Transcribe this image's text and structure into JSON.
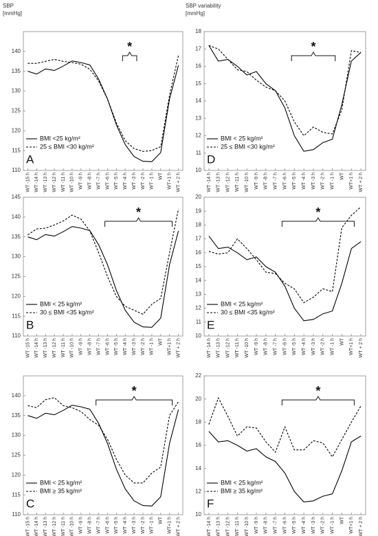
{
  "chart_data": [
    {
      "type": "line",
      "panel": "A",
      "y_label": "SBP [mmHg]",
      "annotation": "*",
      "categories": [
        "WT -15 h",
        "WT -14 h",
        "WT -13 h",
        "WT -12 h",
        "WT -11 h",
        "WT -10 h",
        "WT -9 h",
        "WT -8 h",
        "WT -7 h",
        "WT -6 h",
        "WT -5 h",
        "WT -4 h",
        "WT -3 h",
        "WT -2 h",
        "WT -1 h",
        "WT",
        "WT+1 h",
        "WT + 2 h"
      ],
      "ylim": [
        110,
        145
      ],
      "yticks": [
        110,
        115,
        120,
        125,
        130,
        135,
        140
      ],
      "series": [
        {
          "name": "BMI <25 kg/m²",
          "color": "#000000",
          "line_style": "solid",
          "values": [
            135,
            134.3,
            135.6,
            135.2,
            136.3,
            137.6,
            137.2,
            136.6,
            133,
            128,
            121.5,
            116.5,
            113.5,
            112.3,
            112.2,
            114.5,
            128,
            136.5
          ]
        },
        {
          "name": "25 ≤ BMI <30 kg/m²",
          "color": "#000000",
          "line_style": "dashed",
          "values": [
            137,
            137,
            137.5,
            138,
            137.5,
            137.2,
            136.8,
            135.5,
            132.5,
            128,
            122,
            117.5,
            115.5,
            114.8,
            115,
            116,
            129,
            139
          ]
        }
      ]
    },
    {
      "type": "line",
      "panel": "B",
      "annotation": "*",
      "categories": [
        "WT -15 h",
        "WT -14 h",
        "WT -13 h",
        "WT -12 h",
        "WT -11 h",
        "WT -10 h",
        "WT -9 h",
        "WT -8 h",
        "WT -7 h",
        "WT -6 h",
        "WT -5 h",
        "WT -4 h",
        "WT -3 h",
        "WT -2 h",
        "WT -1 h",
        "WT",
        "WT+1 h",
        "WT + 2 h"
      ],
      "ylim": [
        110,
        145
      ],
      "yticks": [
        110,
        115,
        120,
        125,
        130,
        135,
        140,
        145
      ],
      "series": [
        {
          "name": "BMI < 25 kg/m²",
          "color": "#000000",
          "line_style": "solid",
          "values": [
            135,
            134.3,
            135.6,
            135.2,
            136.3,
            137.6,
            137.2,
            136.6,
            133,
            128,
            121.5,
            116.5,
            113.5,
            112.3,
            112.2,
            114.5,
            128,
            136.5
          ]
        },
        {
          "name": "30 ≤ BMI <35 kg/m²",
          "color": "#000000",
          "line_style": "dashed",
          "values": [
            135.5,
            137,
            137.2,
            138,
            139,
            140.5,
            139.5,
            136.5,
            131,
            125,
            120,
            117.5,
            116.5,
            115.5,
            118,
            119.5,
            131,
            142
          ]
        }
      ]
    },
    {
      "type": "line",
      "panel": "C",
      "annotation": "*",
      "categories": [
        "WT -15 h",
        "WT -14 h",
        "WT -13 h",
        "WT -12 h",
        "WT -11 h",
        "WT -10 h",
        "WT -9 h",
        "WT -8 h",
        "WT -7 h",
        "WT -6 h",
        "WT -5 h",
        "WT -4 h",
        "WT -3 h",
        "WT -2 h",
        "WT -1 h",
        "WT",
        "WT+1 h",
        "WT + 2 h"
      ],
      "ylim": [
        110,
        145
      ],
      "yticks": [
        110,
        115,
        120,
        125,
        130,
        135,
        140
      ],
      "series": [
        {
          "name": "BMI < 25 kg/m²",
          "color": "#000000",
          "line_style": "solid",
          "values": [
            135,
            134.3,
            135.6,
            135.2,
            136.3,
            137.6,
            137.2,
            136.6,
            133,
            128,
            121.5,
            116.5,
            113.5,
            112.3,
            112.2,
            114.5,
            128,
            136.5
          ]
        },
        {
          "name": "BMI ≥ 35 kg/m²",
          "color": "#000000",
          "line_style": "dashed",
          "values": [
            137.5,
            137,
            139,
            139.5,
            137.5,
            137,
            136,
            134,
            132.5,
            129,
            124,
            120,
            118,
            118,
            120.5,
            122,
            135,
            138.5
          ]
        }
      ]
    },
    {
      "type": "line",
      "panel": "D",
      "y_label": "SBP variability [mmHg]",
      "annotation": "*",
      "categories": [
        "WT -14 h",
        "WT -13 h",
        "WT -12 h",
        "WT -11 h",
        "WT -10 h",
        "WT -9 h",
        "WT -8 h",
        "WT -7 h",
        "WT -6 h",
        "WT -5 h",
        "WT -4 h",
        "WT -3 h",
        "WT -2 h",
        "WT -1 h",
        "WT",
        "WT+1 h",
        "WT + 2 h"
      ],
      "ylim": [
        10,
        18
      ],
      "yticks": [
        10,
        11,
        12,
        13,
        14,
        15,
        16,
        17,
        18
      ],
      "series": [
        {
          "name": "BMI < 25 kg/m²",
          "color": "#000000",
          "line_style": "solid",
          "values": [
            17.2,
            16.3,
            16.4,
            16,
            15.5,
            15.7,
            15,
            14.6,
            13.6,
            12,
            11.1,
            11.2,
            11.6,
            11.8,
            13.8,
            16.3,
            16.8
          ]
        },
        {
          "name": "25 ≤ BMI <30 kg/m²",
          "color": "#000000",
          "line_style": "dashed",
          "values": [
            17.2,
            17,
            16.4,
            15.8,
            15.7,
            15.2,
            14.8,
            14.6,
            14,
            12.8,
            12,
            12.5,
            12.2,
            12.1,
            13.5,
            16.9,
            16.8
          ]
        }
      ]
    },
    {
      "type": "line",
      "panel": "E",
      "annotation": "*",
      "categories": [
        "WT -14 h",
        "WT -13 h",
        "WT -12 h",
        "WT -11 h",
        "WT -10 h",
        "WT -9 h",
        "WT -8 h",
        "WT -7 h",
        "WT -6 h",
        "WT -5 h",
        "WT -4 h",
        "WT -3 h",
        "WT -2 h",
        "WT -1 h",
        "WT",
        "WT+1 h",
        "WT + 2 h"
      ],
      "ylim": [
        10,
        20
      ],
      "yticks": [
        10,
        11,
        12,
        13,
        14,
        15,
        16,
        17,
        18,
        19,
        20
      ],
      "series": [
        {
          "name": "BMI < 25 kg/m²",
          "color": "#000000",
          "line_style": "solid",
          "values": [
            17.2,
            16.3,
            16.4,
            16,
            15.5,
            15.7,
            15,
            14.6,
            13.6,
            12,
            11.1,
            11.2,
            11.6,
            11.8,
            13.8,
            16.3,
            16.8
          ]
        },
        {
          "name": "30 ≤ BMI <35 kg/m²",
          "color": "#000000",
          "line_style": "dashed",
          "values": [
            16.1,
            15.9,
            16,
            17,
            16.3,
            15.5,
            14.6,
            14.5,
            13.8,
            13.4,
            12.4,
            12.8,
            13.4,
            13.2,
            17.8,
            18.7,
            19.3
          ]
        }
      ]
    },
    {
      "type": "line",
      "panel": "F",
      "annotation": "*",
      "categories": [
        "WT -14 h",
        "WT -13 h",
        "WT -12 h",
        "WT -11 h",
        "WT -10 h",
        "WT -9 h",
        "WT -8 h",
        "WT -7 h",
        "WT -6 h",
        "WT -5 h",
        "WT -4 h",
        "WT -3 h",
        "WT -2 h",
        "WT -1 h",
        "WT",
        "WT+1 h",
        "WT + 2 h"
      ],
      "ylim": [
        10,
        22
      ],
      "yticks": [
        10,
        12,
        14,
        16,
        18,
        20,
        22
      ],
      "series": [
        {
          "name": "BMI < 25 kg/m²",
          "color": "#000000",
          "line_style": "solid",
          "values": [
            17.2,
            16.3,
            16.4,
            16,
            15.5,
            15.7,
            15,
            14.6,
            13.6,
            12,
            11.1,
            11.2,
            11.6,
            11.8,
            13.8,
            16.3,
            16.8
          ]
        },
        {
          "name": "BMI ≥ 35 kg/m²",
          "color": "#000000",
          "line_style": "dashed",
          "values": [
            17.8,
            20.1,
            18.5,
            16.8,
            17.6,
            17.5,
            16.3,
            15.4,
            17.6,
            15.6,
            15.6,
            16.4,
            16.2,
            15,
            16.5,
            18,
            19.4
          ]
        }
      ]
    }
  ]
}
